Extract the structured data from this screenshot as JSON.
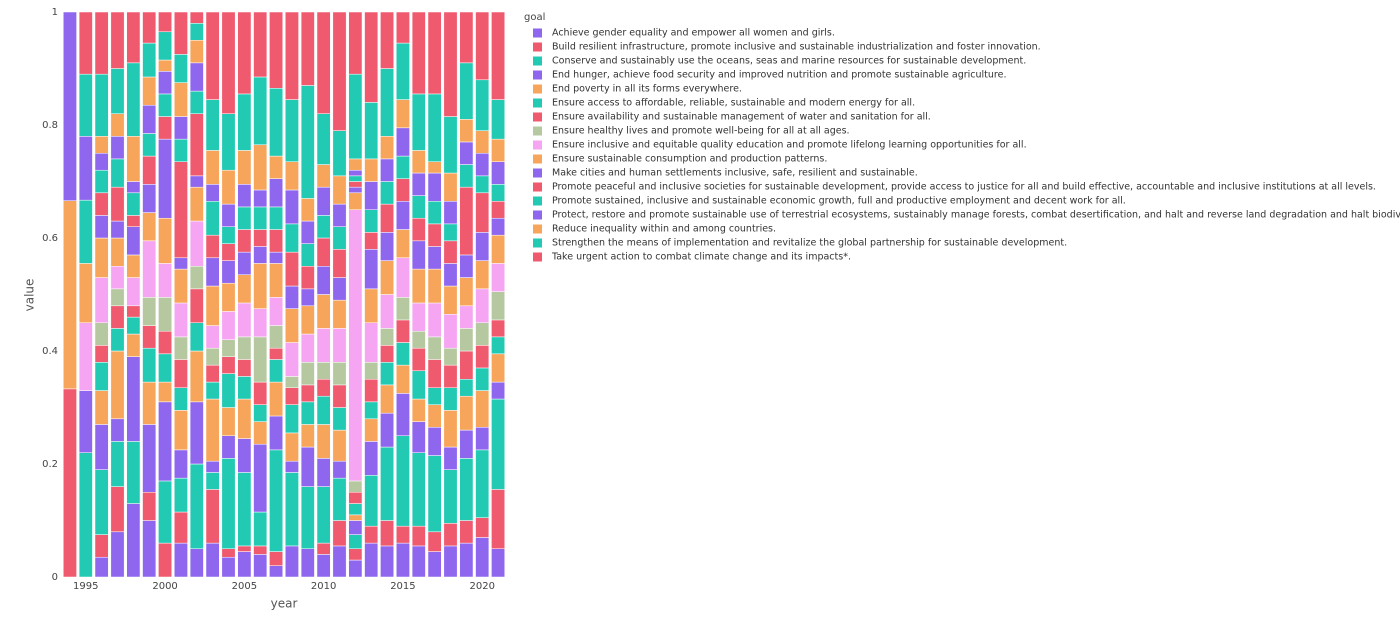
{
  "chart_data": {
    "type": "stacked_bar",
    "x": [
      1994,
      1995,
      1996,
      1997,
      1998,
      1999,
      2000,
      2001,
      2002,
      2003,
      2004,
      2005,
      2006,
      2007,
      2008,
      2009,
      2010,
      2011,
      2012,
      2013,
      2014,
      2015,
      2016,
      2017,
      2018,
      2019,
      2020,
      2021
    ],
    "xlabel": "year",
    "ylabel": "value",
    "legend_title": "goal",
    "xlim": [
      1993.5,
      2021.5
    ],
    "xticks": [
      1995,
      2000,
      2005,
      2010,
      2015,
      2020
    ],
    "ylim": [
      0,
      1
    ],
    "yticks": [
      0,
      0.2,
      0.4,
      0.6,
      0.8,
      1
    ],
    "series": [
      {
        "name": "Achieve gender equality and empower all women and girls.",
        "color": "#8f66ee",
        "values": [
          0,
          0,
          0.035,
          0.08,
          0.13,
          0.1,
          0,
          0.06,
          0.05,
          0.06,
          0.035,
          0.045,
          0.04,
          0.02,
          0.055,
          0.05,
          0.04,
          0.055,
          0.03,
          0.06,
          0.055,
          0.06,
          0.055,
          0.045,
          0.055,
          0.06,
          0.07,
          0.05
        ]
      },
      {
        "name": "Build resilient infrastructure, promote inclusive and sustainable industrialization and foster innovation.",
        "color": "#ef5a6f",
        "values": [
          0.333,
          0,
          0.04,
          0.08,
          0,
          0.05,
          0.06,
          0.055,
          0,
          0.095,
          0.015,
          0.01,
          0.015,
          0.025,
          0,
          0,
          0.02,
          0.045,
          0.02,
          0.03,
          0.045,
          0.03,
          0.035,
          0.035,
          0.04,
          0.04,
          0.035,
          0.105
        ]
      },
      {
        "name": "Conserve and sustainably use the oceans, seas and marine resources for sustainable development.",
        "color": "#22c9b3",
        "values": [
          0,
          0.22,
          0.115,
          0.08,
          0.11,
          0,
          0.11,
          0.06,
          0.15,
          0.03,
          0.16,
          0.13,
          0.06,
          0.18,
          0.13,
          0.11,
          0.1,
          0.075,
          0.025,
          0.09,
          0.13,
          0.16,
          0.13,
          0.135,
          0.095,
          0.11,
          0.12,
          0.16
        ]
      },
      {
        "name": "End hunger, achieve food security and improved nutrition and promote sustainable agriculture.",
        "color": "#8f66ee",
        "values": [
          0,
          0.11,
          0.08,
          0.04,
          0.15,
          0.12,
          0.14,
          0.05,
          0.11,
          0.02,
          0.04,
          0.06,
          0.12,
          0.06,
          0.02,
          0.07,
          0.05,
          0.03,
          0.025,
          0.06,
          0.06,
          0.075,
          0.055,
          0.05,
          0.04,
          0.05,
          0.04,
          0.03
        ]
      },
      {
        "name": "End poverty in all its forms everywhere.",
        "color": "#f7a55a",
        "values": [
          0.333,
          0,
          0.06,
          0.12,
          0.04,
          0.075,
          0.035,
          0.07,
          0.09,
          0.11,
          0.05,
          0.07,
          0.04,
          0.06,
          0.05,
          0.04,
          0.06,
          0.055,
          0.01,
          0.04,
          0.05,
          0.05,
          0.04,
          0.04,
          0.065,
          0.06,
          0.065,
          0.05
        ]
      },
      {
        "name": "Ensure access to affordable, reliable, sustainable and modern energy for all.",
        "color": "#22c9b3",
        "values": [
          0,
          0,
          0.05,
          0.04,
          0.03,
          0.06,
          0.05,
          0.04,
          0.05,
          0.03,
          0.06,
          0.04,
          0.03,
          0.04,
          0.05,
          0.04,
          0.05,
          0.04,
          0.02,
          0.03,
          0.04,
          0.04,
          0.05,
          0.03,
          0.04,
          0.03,
          0.04,
          0.03
        ]
      },
      {
        "name": "Ensure availability and sustainable management of water and sanitation for all.",
        "color": "#ef5a6f",
        "values": [
          0,
          0,
          0.03,
          0.04,
          0.02,
          0.04,
          0.04,
          0.05,
          0.06,
          0.03,
          0.03,
          0.03,
          0.04,
          0.02,
          0.03,
          0.03,
          0.03,
          0.04,
          0.02,
          0.04,
          0.03,
          0.04,
          0.04,
          0.05,
          0.04,
          0.05,
          0.04,
          0.03
        ]
      },
      {
        "name": "Ensure healthy lives and promote well-being for all at all ages.",
        "color": "#b5c8a0",
        "values": [
          0,
          0,
          0.04,
          0.03,
          0,
          0.05,
          0.06,
          0.04,
          0.04,
          0.03,
          0.03,
          0.04,
          0.08,
          0.04,
          0.02,
          0.04,
          0.03,
          0.04,
          0.02,
          0.03,
          0.03,
          0.04,
          0.03,
          0.04,
          0.03,
          0.04,
          0.04,
          0.05
        ]
      },
      {
        "name": "Ensure inclusive and equitable quality education and promote lifelong learning opportunities for all.",
        "color": "#f5a5f2",
        "values": [
          0,
          0.12,
          0.08,
          0.04,
          0.05,
          0.1,
          0.06,
          0.06,
          0.08,
          0.04,
          0.05,
          0.06,
          0.05,
          0.05,
          0.06,
          0.05,
          0.06,
          0.06,
          0.48,
          0.07,
          0.06,
          0.07,
          0.05,
          0.06,
          0.06,
          0.04,
          0.06,
          0.05
        ]
      },
      {
        "name": "Ensure sustainable consumption and production patterns.",
        "color": "#f7a55a",
        "values": [
          0,
          0.105,
          0.07,
          0.05,
          0.04,
          0.05,
          0.08,
          0.06,
          0.06,
          0.07,
          0.05,
          0.05,
          0.08,
          0.06,
          0.06,
          0.05,
          0.06,
          0.05,
          0.03,
          0.06,
          0.06,
          0.05,
          0.06,
          0.06,
          0.05,
          0.05,
          0.05,
          0.05
        ]
      },
      {
        "name": "Make cities and human settlements inclusive, safe, resilient and sustainable.",
        "color": "#8f66ee",
        "values": [
          0.334,
          0,
          0.04,
          0.03,
          0.05,
          0.05,
          0.14,
          0.02,
          0.02,
          0.05,
          0.04,
          0.04,
          0.03,
          0.02,
          0.04,
          0.03,
          0.05,
          0.04,
          0.01,
          0.07,
          0.05,
          0.05,
          0.05,
          0.04,
          0.04,
          0.04,
          0.05,
          0.03
        ]
      },
      {
        "name": "Promote peaceful and inclusive societies for sustainable development, provide access to justice for all and build effective, accountable and inclusive institutions at all levels.",
        "color": "#ef5a6f",
        "values": [
          0,
          0,
          0.04,
          0.06,
          0.02,
          0.05,
          0.04,
          0.17,
          0.11,
          0.04,
          0.03,
          0.04,
          0.03,
          0.04,
          0.06,
          0.04,
          0.05,
          0.05,
          0.01,
          0.03,
          0.05,
          0.04,
          0.04,
          0.04,
          0.04,
          0.12,
          0.07,
          0.03
        ]
      },
      {
        "name": "Promote sustained, inclusive and sustainable economic growth, full and productive employment and decent work for all.",
        "color": "#22c9b3",
        "values": [
          0,
          0.112,
          0.04,
          0.05,
          0.04,
          0.04,
          0.04,
          0.04,
          0.04,
          0.06,
          0.03,
          0.04,
          0.04,
          0.04,
          0.05,
          0.04,
          0.04,
          0.04,
          0.01,
          0.04,
          0.04,
          0.04,
          0.04,
          0.04,
          0.03,
          0.04,
          0.03,
          0.03
        ]
      },
      {
        "name": "Protect, restore and promote sustainable use of terrestrial ecosystems, sustainably manage forests, combat desertification, and halt and reverse land degradation and halt biodiversity loss.",
        "color": "#8f66ee",
        "values": [
          0,
          0.113,
          0.03,
          0.04,
          0.02,
          0.05,
          0.04,
          0.04,
          0.05,
          0.03,
          0.04,
          0.04,
          0.03,
          0.05,
          0.06,
          0.04,
          0.05,
          0.04,
          0.01,
          0.05,
          0.04,
          0.05,
          0.04,
          0.05,
          0.04,
          0.04,
          0.04,
          0.04
        ]
      },
      {
        "name": "Reduce inequality within and among countries.",
        "color": "#f7a55a",
        "values": [
          0,
          0,
          0.03,
          0.04,
          0.08,
          0.05,
          0.02,
          0.06,
          0.04,
          0.06,
          0.06,
          0.06,
          0.08,
          0.04,
          0.05,
          0.04,
          0.04,
          0.05,
          0.02,
          0.04,
          0.04,
          0.05,
          0.04,
          0.02,
          0.05,
          0.04,
          0.04,
          0.04
        ]
      },
      {
        "name": "Strengthen the means of implementation and revitalize the global partnership for sustainable development.",
        "color": "#22c9b3",
        "values": [
          0,
          0.11,
          0.11,
          0.08,
          0.13,
          0.06,
          0.05,
          0.05,
          0.03,
          0.09,
          0.1,
          0.1,
          0.12,
          0.12,
          0.11,
          0.2,
          0.09,
          0.08,
          0.15,
          0.1,
          0.12,
          0.1,
          0.1,
          0.12,
          0.1,
          0.1,
          0.09,
          0.07
        ]
      },
      {
        "name": "Take urgent action to combat climate change and its impacts*.",
        "color": "#ef5a6f",
        "values": [
          0,
          0.11,
          0.11,
          0.1,
          0.09,
          0.055,
          0.035,
          0.075,
          0.02,
          0.155,
          0.18,
          0.145,
          0.115,
          0.135,
          0.155,
          0.13,
          0.18,
          0.21,
          0.11,
          0.16,
          0.1,
          0.055,
          0.145,
          0.145,
          0.185,
          0.09,
          0.12,
          0.155
        ]
      }
    ]
  }
}
